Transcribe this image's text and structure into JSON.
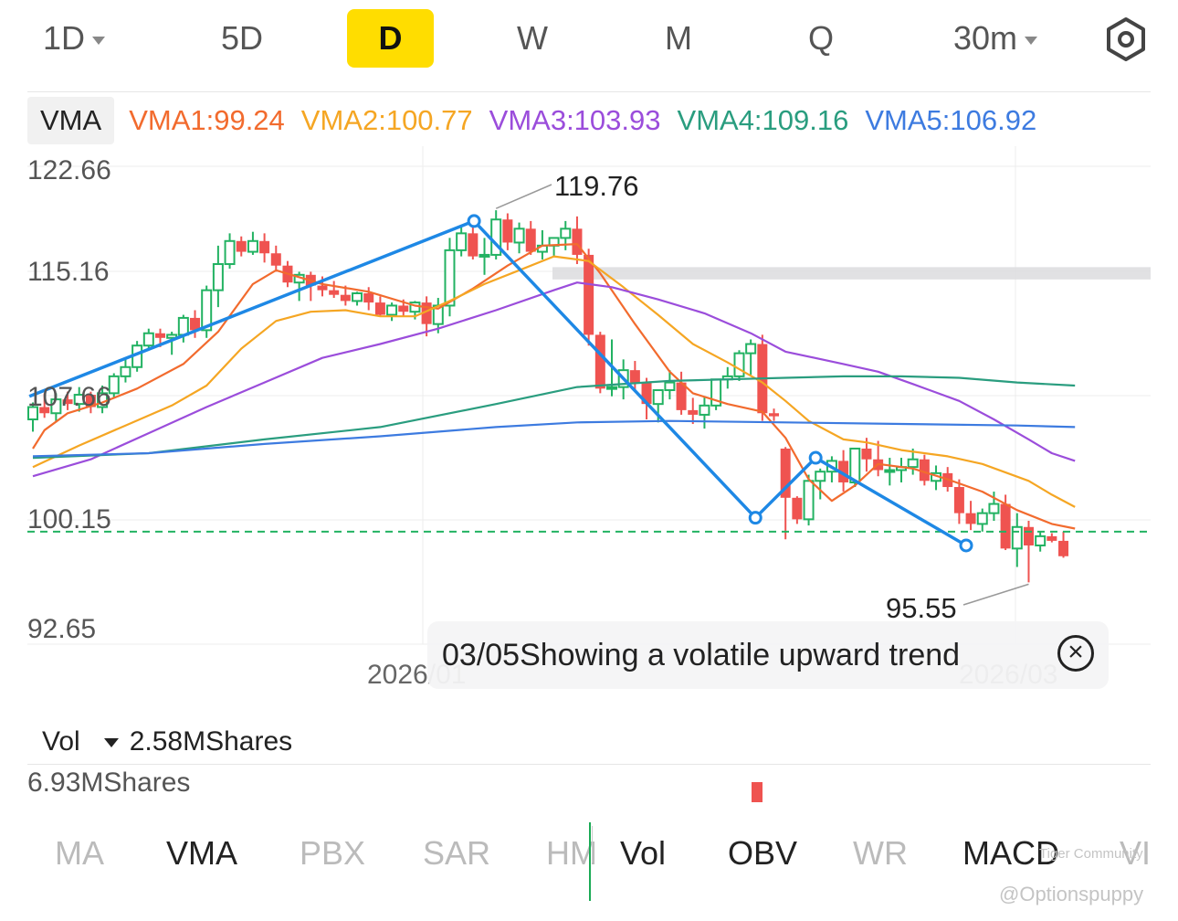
{
  "periods": [
    {
      "label": "1D",
      "dropdown": true
    },
    {
      "label": "5D"
    },
    {
      "label": "D",
      "active": true
    },
    {
      "label": "W"
    },
    {
      "label": "M"
    },
    {
      "label": "Q"
    },
    {
      "label": "30m",
      "dropdown": true
    }
  ],
  "settings_icon": "gear-icon",
  "vma_legend": {
    "tag": "VMA",
    "items": [
      {
        "text": "VMA1:99.24",
        "color": "#f26b2e"
      },
      {
        "text": "VMA2:100.77",
        "color": "#f5a623"
      },
      {
        "text": "VMA3:103.93",
        "color": "#9b4ddb"
      },
      {
        "text": "VMA4:109.16",
        "color": "#2a9d7f"
      },
      {
        "text": "VMA5:106.92",
        "color": "#3d7be0"
      }
    ]
  },
  "chart_data": {
    "type": "candlestick",
    "price_axis_labels": [
      "122.66",
      "115.16",
      "107.66",
      "100.15",
      "92.65"
    ],
    "ylim": [
      92.65,
      122.66
    ],
    "date_labels": [
      "2026/01",
      "2026/03"
    ],
    "high_annotation": "119.76",
    "low_annotation": "95.55",
    "current_price_line": 98.9,
    "colors": {
      "up": "#22b262",
      "down": "#ef5350",
      "trend": "#1e88e5"
    },
    "candles": [
      [
        106.2,
        107.3,
        105.4,
        107.0
      ],
      [
        107.0,
        107.9,
        106.3,
        106.6
      ],
      [
        106.6,
        107.9,
        106.0,
        107.5
      ],
      [
        107.5,
        108.0,
        106.8,
        107.2
      ],
      [
        107.2,
        108.3,
        106.7,
        107.8
      ],
      [
        107.8,
        108.0,
        106.6,
        107.0
      ],
      [
        107.0,
        108.4,
        106.6,
        107.9
      ],
      [
        107.9,
        109.2,
        107.6,
        109.0
      ],
      [
        109.0,
        110.2,
        108.6,
        109.6
      ],
      [
        109.6,
        111.3,
        109.3,
        111.0
      ],
      [
        111.0,
        112.1,
        110.7,
        111.8
      ],
      [
        111.8,
        112.1,
        110.9,
        111.5
      ],
      [
        111.5,
        111.9,
        110.4,
        111.7
      ],
      [
        111.7,
        113.0,
        111.2,
        112.8
      ],
      [
        112.8,
        113.3,
        111.5,
        112.0
      ],
      [
        112.0,
        114.9,
        111.5,
        114.6
      ],
      [
        114.6,
        117.5,
        113.5,
        116.3
      ],
      [
        116.3,
        118.3,
        116.0,
        117.8
      ],
      [
        117.8,
        118.1,
        116.8,
        117.1
      ],
      [
        117.1,
        118.4,
        116.9,
        117.8
      ],
      [
        117.8,
        118.3,
        116.4,
        117.0
      ],
      [
        117.0,
        117.5,
        115.8,
        116.2
      ],
      [
        116.2,
        116.5,
        114.8,
        115.1
      ],
      [
        115.1,
        115.8,
        113.9,
        115.6
      ],
      [
        115.6,
        115.8,
        113.9,
        114.9
      ],
      [
        114.9,
        115.5,
        114.2,
        114.6
      ],
      [
        114.6,
        115.2,
        114.1,
        114.3
      ],
      [
        114.3,
        114.9,
        113.6,
        113.9
      ],
      [
        113.9,
        114.5,
        113.6,
        114.4
      ],
      [
        114.4,
        114.8,
        113.3,
        113.8
      ],
      [
        113.8,
        114.2,
        112.9,
        113.0
      ],
      [
        113.0,
        113.8,
        112.6,
        113.6
      ],
      [
        113.6,
        114.0,
        112.9,
        113.2
      ],
      [
        113.2,
        113.9,
        112.7,
        113.8
      ],
      [
        113.8,
        114.2,
        111.6,
        112.4
      ],
      [
        112.4,
        114.1,
        111.8,
        113.6
      ],
      [
        113.6,
        118.0,
        112.9,
        117.2
      ],
      [
        117.2,
        118.7,
        116.8,
        118.3
      ],
      [
        118.3,
        119.1,
        116.6,
        116.8
      ],
      [
        116.8,
        118.0,
        115.6,
        116.9
      ],
      [
        116.9,
        119.8,
        116.6,
        119.2
      ],
      [
        119.2,
        119.6,
        117.2,
        117.7
      ],
      [
        117.7,
        119.0,
        117.0,
        118.6
      ],
      [
        118.6,
        119.1,
        116.9,
        117.1
      ],
      [
        117.1,
        118.5,
        116.6,
        117.5
      ],
      [
        117.5,
        118.0,
        116.8,
        118.0
      ],
      [
        118.0,
        119.1,
        117.2,
        118.6
      ],
      [
        118.6,
        119.4,
        116.3,
        116.9
      ],
      [
        116.9,
        117.3,
        111.0,
        111.7
      ],
      [
        111.7,
        111.9,
        107.9,
        108.2
      ],
      [
        108.2,
        111.4,
        107.7,
        108.3
      ],
      [
        108.3,
        110.1,
        107.5,
        109.4
      ],
      [
        109.4,
        110.0,
        108.0,
        108.6
      ],
      [
        108.6,
        108.9,
        106.2,
        107.2
      ],
      [
        107.2,
        108.0,
        106.0,
        108.1
      ],
      [
        108.1,
        109.4,
        107.5,
        108.6
      ],
      [
        108.6,
        109.3,
        106.5,
        106.8
      ],
      [
        106.8,
        107.6,
        105.9,
        106.5
      ],
      [
        106.5,
        107.7,
        105.6,
        107.1
      ],
      [
        107.1,
        108.8,
        106.8,
        108.8
      ],
      [
        108.8,
        109.6,
        108.2,
        109.0
      ],
      [
        109.0,
        110.7,
        108.7,
        110.5
      ],
      [
        110.5,
        111.4,
        109.1,
        111.1
      ],
      [
        111.1,
        111.7,
        106.1,
        106.6
      ],
      [
        106.6,
        106.9,
        106.1,
        106.4
      ],
      [
        104.3,
        104.4,
        98.4,
        101.1
      ],
      [
        101.1,
        101.2,
        99.4,
        99.7
      ],
      [
        99.7,
        102.6,
        99.3,
        102.2
      ],
      [
        102.2,
        103.0,
        101.0,
        102.8
      ],
      [
        102.8,
        103.8,
        102.1,
        103.5
      ],
      [
        103.5,
        104.2,
        101.5,
        102.1
      ],
      [
        102.1,
        104.3,
        101.8,
        104.3
      ],
      [
        104.3,
        105.0,
        102.8,
        103.6
      ],
      [
        103.6,
        104.8,
        102.5,
        102.9
      ],
      [
        102.9,
        103.7,
        101.9,
        102.9
      ],
      [
        102.9,
        103.7,
        102.1,
        103.1
      ],
      [
        103.1,
        104.3,
        102.6,
        103.6
      ],
      [
        103.6,
        103.9,
        101.9,
        102.2
      ],
      [
        102.2,
        103.2,
        101.6,
        102.7
      ],
      [
        102.7,
        103.1,
        101.5,
        101.8
      ],
      [
        101.8,
        102.3,
        99.4,
        100.1
      ],
      [
        100.1,
        100.9,
        99.0,
        99.4
      ],
      [
        99.4,
        100.4,
        98.9,
        100.1
      ],
      [
        100.1,
        101.5,
        99.6,
        100.7
      ],
      [
        100.7,
        101.3,
        97.7,
        97.8
      ],
      [
        97.8,
        100.1,
        96.6,
        99.2
      ],
      [
        99.2,
        99.6,
        95.6,
        98.0
      ],
      [
        98.0,
        98.9,
        97.6,
        98.6
      ],
      [
        98.6,
        98.8,
        98.2,
        98.3
      ],
      [
        98.3,
        98.9,
        97.2,
        97.3
      ]
    ],
    "series": [
      {
        "name": "VMA1",
        "color": "#f26b2e",
        "values": [
          [
            0,
            104.3
          ],
          [
            1,
            105.5
          ],
          [
            3,
            106.6
          ],
          [
            6,
            107.3
          ],
          [
            9,
            108.2
          ],
          [
            13,
            109.8
          ],
          [
            16,
            111.9
          ],
          [
            19,
            115.0
          ],
          [
            21,
            115.9
          ],
          [
            25,
            115.0
          ],
          [
            29,
            114.5
          ],
          [
            33,
            113.6
          ],
          [
            35,
            113.4
          ],
          [
            38,
            114.7
          ],
          [
            41,
            116.2
          ],
          [
            44,
            117.5
          ],
          [
            47,
            117.6
          ],
          [
            49,
            115.7
          ],
          [
            52,
            112.4
          ],
          [
            55,
            109.3
          ],
          [
            57,
            107.9
          ],
          [
            60,
            107.2
          ],
          [
            63,
            106.7
          ],
          [
            65,
            105.0
          ],
          [
            67,
            102.3
          ],
          [
            69,
            100.9
          ],
          [
            71,
            101.9
          ],
          [
            73,
            103.3
          ],
          [
            76,
            103.0
          ],
          [
            79,
            102.3
          ],
          [
            82,
            101.5
          ],
          [
            85,
            100.3
          ],
          [
            88,
            99.4
          ],
          [
            90,
            99.1
          ]
        ]
      },
      {
        "name": "VMA2",
        "color": "#f5a623",
        "values": [
          [
            0,
            103.1
          ],
          [
            4,
            104.5
          ],
          [
            8,
            105.8
          ],
          [
            12,
            107.1
          ],
          [
            15,
            108.4
          ],
          [
            18,
            110.8
          ],
          [
            21,
            112.6
          ],
          [
            24,
            113.2
          ],
          [
            27,
            113.3
          ],
          [
            30,
            112.9
          ],
          [
            33,
            112.9
          ],
          [
            36,
            113.9
          ],
          [
            39,
            115.0
          ],
          [
            42,
            115.9
          ],
          [
            45,
            116.8
          ],
          [
            48,
            116.5
          ],
          [
            51,
            114.8
          ],
          [
            54,
            113.0
          ],
          [
            57,
            111.1
          ],
          [
            60,
            109.9
          ],
          [
            63,
            108.6
          ],
          [
            65,
            107.4
          ],
          [
            67,
            106.1
          ],
          [
            70,
            104.9
          ],
          [
            72,
            104.7
          ],
          [
            75,
            104.2
          ],
          [
            79,
            103.8
          ],
          [
            82,
            103.3
          ],
          [
            86,
            102.2
          ],
          [
            88,
            101.3
          ],
          [
            90,
            100.5
          ]
        ]
      },
      {
        "name": "VMA3",
        "color": "#9b4ddb",
        "values": [
          [
            0,
            102.5
          ],
          [
            5,
            103.6
          ],
          [
            10,
            105.3
          ],
          [
            15,
            107.0
          ],
          [
            20,
            108.6
          ],
          [
            25,
            110.2
          ],
          [
            30,
            111.1
          ],
          [
            35,
            112.1
          ],
          [
            40,
            113.3
          ],
          [
            45,
            114.6
          ],
          [
            47,
            115.1
          ],
          [
            50,
            114.8
          ],
          [
            54,
            114.0
          ],
          [
            58,
            113.1
          ],
          [
            62,
            111.8
          ],
          [
            65,
            110.6
          ],
          [
            70,
            109.8
          ],
          [
            73,
            109.3
          ],
          [
            76,
            108.5
          ],
          [
            80,
            107.4
          ],
          [
            83,
            106.2
          ],
          [
            86,
            104.9
          ],
          [
            88,
            104.0
          ],
          [
            90,
            103.5
          ]
        ]
      },
      {
        "name": "VMA4",
        "color": "#2a9d7f",
        "values": [
          [
            0,
            103.7
          ],
          [
            10,
            104.0
          ],
          [
            20,
            104.9
          ],
          [
            30,
            105.7
          ],
          [
            40,
            107.2
          ],
          [
            47,
            108.3
          ],
          [
            55,
            108.7
          ],
          [
            60,
            108.8
          ],
          [
            65,
            108.9
          ],
          [
            70,
            109.0
          ],
          [
            75,
            109.0
          ],
          [
            80,
            108.9
          ],
          [
            85,
            108.6
          ],
          [
            90,
            108.4
          ]
        ]
      },
      {
        "name": "VMA5",
        "color": "#3d7be0",
        "values": [
          [
            0,
            103.8
          ],
          [
            10,
            104.0
          ],
          [
            20,
            104.6
          ],
          [
            30,
            105.1
          ],
          [
            40,
            105.7
          ],
          [
            47,
            106.0
          ],
          [
            55,
            106.1
          ],
          [
            65,
            106.0
          ],
          [
            75,
            105.9
          ],
          [
            85,
            105.8
          ],
          [
            90,
            105.7
          ]
        ]
      }
    ],
    "trendline": [
      [
        -0.3,
        107.7
      ],
      [
        38.1,
        119.1
      ],
      [
        62.4,
        99.8
      ],
      [
        67.6,
        103.7
      ],
      [
        80.6,
        98.0
      ]
    ],
    "resistance_zone": [
      115.3,
      116.1
    ]
  },
  "tooltip": {
    "text": "03/05Showing a volatile upward trend"
  },
  "volume": {
    "label": "Vol",
    "value": "2.58MShares",
    "max_label": "6.93MShares"
  },
  "indicators": [
    {
      "label": "MA"
    },
    {
      "label": "VMA",
      "active": true
    },
    {
      "label": "PBX"
    },
    {
      "label": "SAR"
    },
    {
      "label": "HM"
    },
    {
      "label": "Vol",
      "active": true
    },
    {
      "label": "OBV",
      "active": true
    },
    {
      "label": "WR"
    },
    {
      "label": "MACD",
      "active": true
    },
    {
      "label": "VI"
    }
  ],
  "watermarks": {
    "community": "Tiger Community",
    "author": "@Optionspuppy"
  }
}
